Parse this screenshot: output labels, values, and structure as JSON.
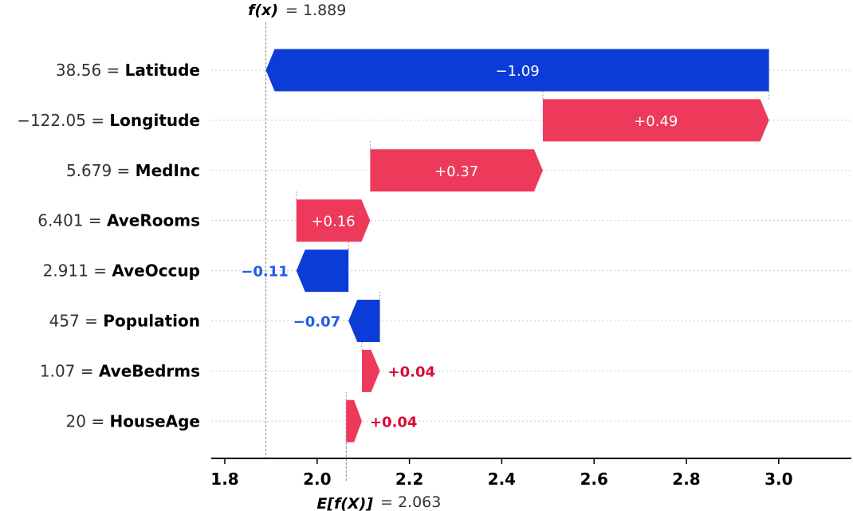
{
  "chart_data": {
    "type": "waterfall",
    "base_value": 2.063,
    "output_value": 1.889,
    "base_label": "E[f(X)]",
    "output_label": "f(x)",
    "base_value_text": "2.063",
    "output_value_text": "1.889",
    "xlim": [
      1.76,
      3.16
    ],
    "xticks": [
      1.8,
      2.0,
      2.2,
      2.4,
      2.6,
      2.8,
      3.0
    ],
    "xtick_labels": [
      "1.8",
      "2.0",
      "2.2",
      "2.4",
      "2.6",
      "2.8",
      "3.0"
    ],
    "features": [
      {
        "value": "38.56",
        "name": "Latitude",
        "contribution": -1.09,
        "label": "−1.09",
        "start": 2.979,
        "end": 1.889
      },
      {
        "value": "−122.05",
        "name": "Longitude",
        "contribution": 0.49,
        "label": "+0.49",
        "start": 2.489,
        "end": 2.979
      },
      {
        "value": "5.679",
        "name": "MedInc",
        "contribution": 0.37,
        "label": "+0.37",
        "start": 2.115,
        "end": 2.489
      },
      {
        "value": "6.401",
        "name": "AveRooms",
        "contribution": 0.16,
        "label": "+0.16",
        "start": 1.955,
        "end": 2.115
      },
      {
        "value": "2.911",
        "name": "AveOccup",
        "contribution": -0.11,
        "label": "−0.11",
        "start": 2.068,
        "end": 1.955
      },
      {
        "value": "457",
        "name": "Population",
        "contribution": -0.07,
        "label": "−0.07",
        "start": 2.136,
        "end": 2.068
      },
      {
        "value": "1.07",
        "name": "AveBedrms",
        "contribution": 0.04,
        "label": "+0.04",
        "start": 2.097,
        "end": 2.136
      },
      {
        "value": "20",
        "name": "HouseAge",
        "contribution": 0.04,
        "label": "+0.04",
        "start": 2.063,
        "end": 2.097
      }
    ],
    "colors": {
      "positive": "#ed3a5b",
      "negative": "#0c3cd8",
      "positive_text": "#d90a37",
      "negative_text": "#1e5ce6",
      "grid": "#cccccc",
      "axis": "#000000"
    }
  }
}
